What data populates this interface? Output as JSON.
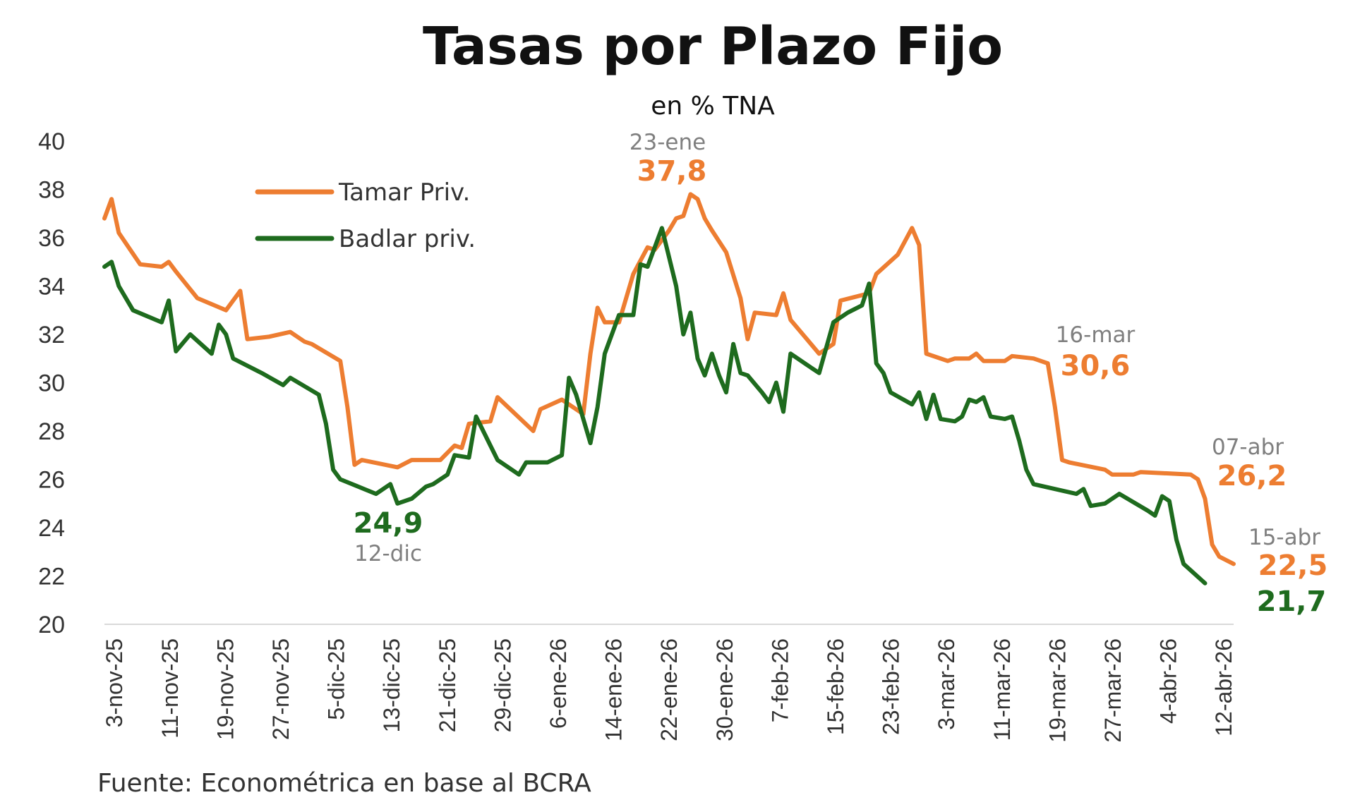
{
  "chart_data": {
    "type": "line",
    "title": "Tasas por Plazo Fijo",
    "subtitle": "en % TNA",
    "source": "Fuente: Econométrica en base al BCRA",
    "ylim": [
      20,
      40
    ],
    "yticks": [
      "20",
      "22",
      "24",
      "26",
      "28",
      "30",
      "32",
      "34",
      "36",
      "38",
      "40"
    ],
    "xticks": [
      "3-nov-25",
      "11-nov-25",
      "19-nov-25",
      "27-nov-25",
      "5-dic-25",
      "13-dic-25",
      "21-dic-25",
      "29-dic-25",
      "6-ene-26",
      "14-ene-26",
      "22-ene-26",
      "30-ene-26",
      "7-feb-26",
      "15-feb-26",
      "23-feb-26",
      "3-mar-26",
      "11-mar-26",
      "19-mar-26",
      "27-mar-26",
      "4-abr-26",
      "12-abr-26"
    ],
    "legend_position": "top-left",
    "grid": false,
    "series": [
      {
        "name": "Tamar Priv.",
        "color": "#ED7D31",
        "points": [
          [
            0,
            36.8
          ],
          [
            1,
            37.6
          ],
          [
            2,
            36.2
          ],
          [
            5,
            34.9
          ],
          [
            8,
            34.8
          ],
          [
            9,
            35.0
          ],
          [
            10,
            34.6
          ],
          [
            13,
            33.5
          ],
          [
            17,
            33.0
          ],
          [
            19,
            33.8
          ],
          [
            20,
            31.8
          ],
          [
            23,
            31.9
          ],
          [
            26,
            32.1
          ],
          [
            28,
            31.7
          ],
          [
            29,
            31.6
          ],
          [
            33,
            30.9
          ],
          [
            34,
            29.0
          ],
          [
            35,
            26.6
          ],
          [
            36,
            26.8
          ],
          [
            41,
            26.5
          ],
          [
            43,
            26.8
          ],
          [
            47,
            26.8
          ],
          [
            49,
            27.4
          ],
          [
            50,
            27.3
          ],
          [
            51,
            28.3
          ],
          [
            54,
            28.4
          ],
          [
            55,
            29.4
          ],
          [
            60,
            28.0
          ],
          [
            61,
            28.9
          ],
          [
            64,
            29.3
          ],
          [
            67,
            28.7
          ],
          [
            68,
            31.2
          ],
          [
            69,
            33.1
          ],
          [
            70,
            32.5
          ],
          [
            72,
            32.5
          ],
          [
            74,
            34.5
          ],
          [
            76,
            35.6
          ],
          [
            77,
            35.5
          ],
          [
            79,
            36.3
          ],
          [
            80,
            36.8
          ],
          [
            81,
            36.9
          ],
          [
            82,
            37.8
          ],
          [
            83,
            37.6
          ],
          [
            84,
            36.8
          ],
          [
            85,
            36.3
          ],
          [
            87,
            35.4
          ],
          [
            89,
            33.5
          ],
          [
            90,
            31.8
          ],
          [
            91,
            32.9
          ],
          [
            94,
            32.8
          ],
          [
            95,
            33.7
          ],
          [
            96,
            32.6
          ],
          [
            100,
            31.2
          ],
          [
            102,
            31.6
          ],
          [
            103,
            33.4
          ],
          [
            107,
            33.7
          ],
          [
            108,
            34.5
          ],
          [
            111,
            35.3
          ],
          [
            113,
            36.4
          ],
          [
            114,
            35.7
          ],
          [
            115,
            31.2
          ],
          [
            118,
            30.9
          ],
          [
            119,
            31.0
          ],
          [
            121,
            31.0
          ],
          [
            122,
            31.2
          ],
          [
            123,
            30.9
          ],
          [
            126,
            30.9
          ],
          [
            127,
            31.1
          ],
          [
            130,
            31.0
          ],
          [
            132,
            30.8
          ],
          [
            133,
            29.0
          ],
          [
            134,
            26.8
          ],
          [
            135,
            26.7
          ],
          [
            140,
            26.4
          ],
          [
            141,
            26.2
          ],
          [
            144,
            26.2
          ],
          [
            145,
            26.3
          ],
          [
            152,
            26.2
          ],
          [
            153,
            26.0
          ],
          [
            154,
            25.2
          ],
          [
            155,
            23.3
          ],
          [
            156,
            22.8
          ],
          [
            158,
            22.5
          ]
        ]
      },
      {
        "name": "Badlar priv.",
        "color": "#1E6B1E",
        "points": [
          [
            0,
            34.8
          ],
          [
            1,
            35.0
          ],
          [
            2,
            34.0
          ],
          [
            4,
            33.0
          ],
          [
            8,
            32.5
          ],
          [
            9,
            33.4
          ],
          [
            10,
            31.3
          ],
          [
            12,
            32.0
          ],
          [
            15,
            31.2
          ],
          [
            16,
            32.4
          ],
          [
            17,
            32.0
          ],
          [
            18,
            31.0
          ],
          [
            22,
            30.4
          ],
          [
            25,
            29.9
          ],
          [
            26,
            30.2
          ],
          [
            30,
            29.5
          ],
          [
            31,
            28.3
          ],
          [
            32,
            26.4
          ],
          [
            33,
            26.0
          ],
          [
            38,
            25.4
          ],
          [
            40,
            25.8
          ],
          [
            41,
            25.0
          ],
          [
            43,
            25.2
          ],
          [
            45,
            25.7
          ],
          [
            46,
            25.8
          ],
          [
            48,
            26.2
          ],
          [
            49,
            27.0
          ],
          [
            51,
            26.9
          ],
          [
            52,
            28.6
          ],
          [
            55,
            26.8
          ],
          [
            58,
            26.2
          ],
          [
            59,
            26.7
          ],
          [
            62,
            26.7
          ],
          [
            64,
            27.0
          ],
          [
            65,
            30.2
          ],
          [
            66,
            29.5
          ],
          [
            68,
            27.5
          ],
          [
            69,
            29.0
          ],
          [
            70,
            31.2
          ],
          [
            72,
            32.8
          ],
          [
            74,
            32.8
          ],
          [
            75,
            34.9
          ],
          [
            76,
            34.8
          ],
          [
            78,
            36.4
          ],
          [
            80,
            34.0
          ],
          [
            81,
            32.0
          ],
          [
            82,
            32.9
          ],
          [
            83,
            31.0
          ],
          [
            84,
            30.3
          ],
          [
            85,
            31.2
          ],
          [
            86,
            30.3
          ],
          [
            87,
            29.6
          ],
          [
            88,
            31.6
          ],
          [
            89,
            30.4
          ],
          [
            90,
            30.3
          ],
          [
            92,
            29.6
          ],
          [
            93,
            29.2
          ],
          [
            94,
            30.0
          ],
          [
            95,
            28.8
          ],
          [
            96,
            31.2
          ],
          [
            98,
            30.8
          ],
          [
            99,
            30.6
          ],
          [
            100,
            30.4
          ],
          [
            102,
            32.5
          ],
          [
            104,
            32.9
          ],
          [
            106,
            33.2
          ],
          [
            107,
            34.1
          ],
          [
            108,
            30.8
          ],
          [
            109,
            30.4
          ],
          [
            110,
            29.6
          ],
          [
            113,
            29.1
          ],
          [
            114,
            29.6
          ],
          [
            115,
            28.5
          ],
          [
            116,
            29.5
          ],
          [
            117,
            28.5
          ],
          [
            119,
            28.4
          ],
          [
            120,
            28.6
          ],
          [
            121,
            29.3
          ],
          [
            122,
            29.2
          ],
          [
            123,
            29.4
          ],
          [
            124,
            28.6
          ],
          [
            126,
            28.5
          ],
          [
            127,
            28.6
          ],
          [
            128,
            27.6
          ],
          [
            129,
            26.4
          ],
          [
            130,
            25.8
          ],
          [
            136,
            25.4
          ],
          [
            137,
            25.6
          ],
          [
            138,
            24.9
          ],
          [
            140,
            25.0
          ],
          [
            142,
            25.4
          ],
          [
            146,
            24.7
          ],
          [
            147,
            24.5
          ],
          [
            148,
            25.3
          ],
          [
            149,
            25.1
          ],
          [
            150,
            23.5
          ],
          [
            151,
            22.5
          ],
          [
            154,
            21.7
          ]
        ]
      }
    ],
    "annotations": [
      {
        "date": "23-ene",
        "value": "37,8",
        "series": 0
      },
      {
        "date": "12-dic",
        "value": "24,9",
        "series": 1
      },
      {
        "date": "16-mar",
        "value": "30,6",
        "series": 0
      },
      {
        "date": "07-abr",
        "value": "26,2",
        "series": 0
      },
      {
        "date": "15-abr",
        "value": "22,5",
        "series": 0
      },
      {
        "date": "",
        "value": "21,7",
        "series": 1
      }
    ]
  }
}
